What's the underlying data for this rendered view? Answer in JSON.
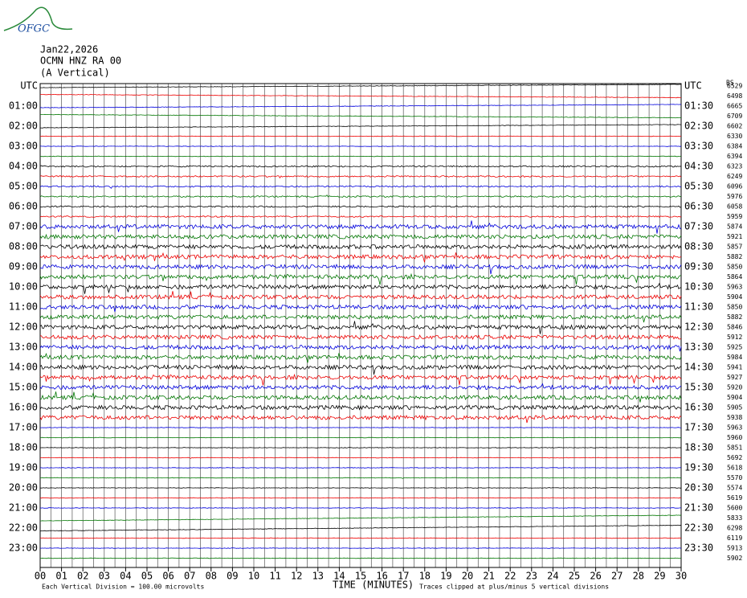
{
  "logo": "OFGC",
  "header": {
    "date": "Jan22,2026",
    "station": "OCMN HNZ RA 00",
    "component": "(A Vertical)",
    "corner": "BS"
  },
  "left_labels": [
    "UTC",
    "01:00",
    "02:00",
    "03:00",
    "04:00",
    "05:00",
    "06:00",
    "07:00",
    "08:00",
    "09:00",
    "10:00",
    "11:00",
    "12:00",
    "13:00",
    "14:00",
    "15:00",
    "16:00",
    "17:00",
    "18:00",
    "19:00",
    "20:00",
    "21:00",
    "22:00",
    "23:00"
  ],
  "right_labels": [
    "UTC",
    "01:30",
    "02:30",
    "03:30",
    "04:30",
    "05:30",
    "06:30",
    "07:30",
    "08:30",
    "09:30",
    "10:30",
    "11:30",
    "12:30",
    "13:30",
    "14:30",
    "15:30",
    "16:30",
    "17:30",
    "18:30",
    "19:30",
    "20:30",
    "21:30",
    "22:30",
    "23:30"
  ],
  "right_values": [
    6529,
    6498,
    6665,
    6709,
    6602,
    6330,
    6384,
    6394,
    6323,
    6249,
    6096,
    5976,
    6058,
    5959,
    5874,
    5921,
    5857,
    5882,
    5850,
    5864,
    5963,
    5904,
    5850,
    5882,
    5846,
    5912,
    5925,
    5984,
    5941,
    5927,
    5920,
    5904,
    5905,
    5938,
    5963,
    5960,
    5851,
    5692,
    5618,
    5570,
    5574,
    5619,
    5600,
    5833,
    6298,
    6119,
    5913,
    5902
  ],
  "x_ticks": [
    "00",
    "01",
    "02",
    "03",
    "04",
    "05",
    "06",
    "07",
    "08",
    "09",
    "10",
    "11",
    "12",
    "13",
    "14",
    "15",
    "16",
    "17",
    "18",
    "19",
    "20",
    "21",
    "22",
    "23",
    "24",
    "25",
    "26",
    "27",
    "28",
    "29",
    "30"
  ],
  "footer": {
    "scale": "Each Vertical Division =  100.00 microvolts",
    "axis_title": "TIME (MINUTES)",
    "clip": "Traces clipped at plus/minus 5 vertical divisions"
  }
}
